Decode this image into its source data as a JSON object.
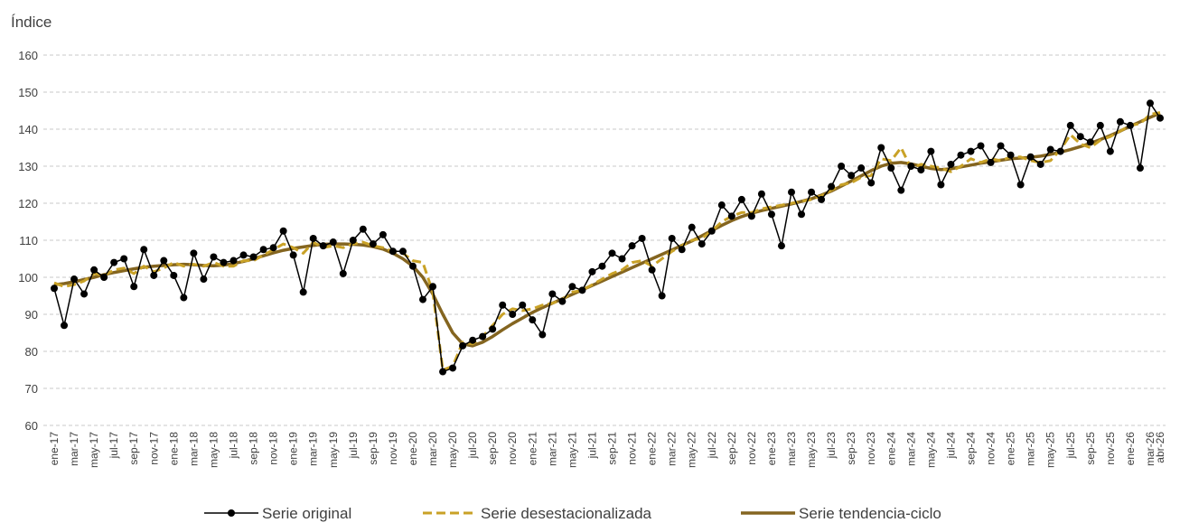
{
  "chart_data": {
    "type": "line",
    "y_label": "Índice",
    "categories": [
      "ene-17",
      null,
      "mar-17",
      null,
      "may-17",
      null,
      "jul-17",
      null,
      "sep-17",
      null,
      "nov-17",
      null,
      "ene-18",
      null,
      "mar-18",
      null,
      "may-18",
      null,
      "jul-18",
      null,
      "sep-18",
      null,
      "nov-18",
      null,
      "ene-19",
      null,
      "mar-19",
      null,
      "may-19",
      null,
      "jul-19",
      null,
      "sep-19",
      null,
      "nov-19",
      null,
      "ene-20",
      null,
      "mar-20",
      null,
      "may-20",
      null,
      "jul-20",
      null,
      "sep-20",
      null,
      "nov-20",
      null,
      "ene-21",
      null,
      "mar-21",
      null,
      "may-21",
      null,
      "jul-21",
      null,
      "sep-21",
      null,
      "nov-21",
      null,
      "ene-22",
      null,
      "mar-22",
      null,
      "may-22",
      null,
      "jul-22",
      null,
      "sep-22",
      null,
      "nov-22",
      null,
      "ene-23",
      null,
      "mar-23",
      null,
      "may-23",
      null,
      "jul-23",
      null,
      "sep-23",
      null,
      "nov-23",
      null,
      "ene-24",
      null,
      "mar-24",
      null,
      "may-24",
      null,
      "jul-24",
      null,
      "sep-24",
      null,
      "nov-24",
      null,
      "ene-25",
      null,
      "mar-25",
      null,
      "may-25",
      null,
      "jul-25",
      null,
      "sep-25",
      null,
      "nov-25",
      null,
      "ene-26",
      null,
      "mar-26",
      "abr-26"
    ],
    "series": [
      {
        "name": "Serie original",
        "color": "#000000",
        "style": "solid-markers",
        "values": [
          97,
          87,
          99.5,
          95.5,
          102,
          100,
          104,
          105,
          97.5,
          107.5,
          100.5,
          104.5,
          100.5,
          94.5,
          106.5,
          99.5,
          105.5,
          104,
          104.5,
          106,
          105.5,
          107.5,
          108,
          112.5,
          106,
          96,
          110.5,
          108.5,
          109.5,
          101,
          110,
          113,
          109,
          111.5,
          107,
          107,
          103,
          94,
          97.5,
          74.5,
          75.5,
          81.5,
          83,
          84,
          86,
          92.5,
          90,
          92.5,
          88.5,
          84.5,
          95.5,
          93.5,
          97.5,
          96.5,
          101.5,
          103,
          106.5,
          105,
          108.5,
          110.5,
          102,
          95,
          110.5,
          107.5,
          113.5,
          109,
          112.5,
          119.5,
          116.5,
          121,
          116.5,
          122.5,
          117,
          108.5,
          123,
          117,
          123,
          121,
          124.5,
          130,
          127.5,
          129.5,
          125.5,
          135,
          129.5,
          123.5,
          130,
          129,
          134,
          125,
          130.5,
          133,
          134,
          135.5,
          131,
          135.5,
          133,
          125,
          132.5,
          130.5,
          134.5,
          134,
          141,
          138,
          136.5,
          141,
          134,
          142,
          141,
          129.5,
          147,
          143
        ]
      },
      {
        "name": "Serie desestacionalizada",
        "color": "#c9a227",
        "style": "dashed",
        "values": [
          98.5,
          97.5,
          98,
          99,
          101,
          100.5,
          102,
          102.5,
          101,
          103,
          101.5,
          102.5,
          104,
          103,
          103.5,
          103,
          104,
          103,
          103,
          104.5,
          104.5,
          106,
          107.5,
          109,
          108,
          106.5,
          109.5,
          108,
          108.5,
          108,
          109,
          109.5,
          108.5,
          108,
          107,
          106.5,
          104.5,
          104,
          96,
          75,
          76,
          82.5,
          82,
          84,
          87,
          90,
          91.5,
          91,
          91.5,
          92.5,
          93,
          94,
          96,
          96.5,
          98,
          99.5,
          101,
          102,
          104,
          104.5,
          103,
          105,
          107,
          108.5,
          110,
          110.5,
          112.5,
          115,
          116.5,
          117.5,
          117.5,
          118.5,
          119,
          119.5,
          120,
          120.5,
          121,
          122,
          123.5,
          125,
          125.5,
          127,
          127.5,
          132,
          131.5,
          135,
          129.5,
          130.5,
          130,
          129.5,
          128.5,
          130,
          132,
          131,
          132,
          131.5,
          132.5,
          132.5,
          131.5,
          131,
          131.5,
          134.5,
          138.5,
          136,
          135,
          137,
          138,
          139.5,
          141,
          141.5,
          144,
          144.5
        ]
      },
      {
        "name": "Serie tendencia-ciclo",
        "color": "#846520",
        "style": "solid-thick",
        "values": [
          98,
          98.3,
          98.8,
          99.4,
          100,
          100.7,
          101.3,
          101.8,
          102.3,
          102.7,
          103,
          103.2,
          103.4,
          103.5,
          103.4,
          103.2,
          103.1,
          103.3,
          103.7,
          104.3,
          105,
          105.8,
          106.6,
          107.3,
          107.8,
          108.2,
          108.6,
          108.9,
          109,
          109,
          108.9,
          108.7,
          108.3,
          107.6,
          106.5,
          105,
          103,
          100,
          95.5,
          90,
          85,
          82,
          81.5,
          82.5,
          84,
          85.8,
          87.5,
          89,
          90.5,
          91.8,
          93,
          94.2,
          95.4,
          96.6,
          97.8,
          99,
          100.2,
          101.4,
          102.6,
          103.8,
          105,
          106.2,
          107.4,
          108.6,
          109.8,
          111.2,
          112.6,
          114,
          115.3,
          116.4,
          117.3,
          118,
          118.6,
          119.2,
          119.8,
          120.5,
          121.2,
          122.2,
          123.3,
          124.6,
          126,
          127.4,
          128.8,
          130,
          130.8,
          131,
          130.6,
          130,
          129.4,
          129.1,
          129.3,
          129.8,
          130.3,
          130.8,
          131.2,
          131.6,
          132,
          132.2,
          132.4,
          132.7,
          133.2,
          133.8,
          134.5,
          135.3,
          136.2,
          137.2,
          138.3,
          139.5,
          140.8,
          142,
          143.2,
          144.3
        ]
      }
    ],
    "ylim": [
      60,
      160
    ],
    "yticks": [
      60,
      70,
      80,
      90,
      100,
      110,
      120,
      130,
      140,
      150,
      160
    ],
    "grid": true,
    "legend": "bottom"
  }
}
